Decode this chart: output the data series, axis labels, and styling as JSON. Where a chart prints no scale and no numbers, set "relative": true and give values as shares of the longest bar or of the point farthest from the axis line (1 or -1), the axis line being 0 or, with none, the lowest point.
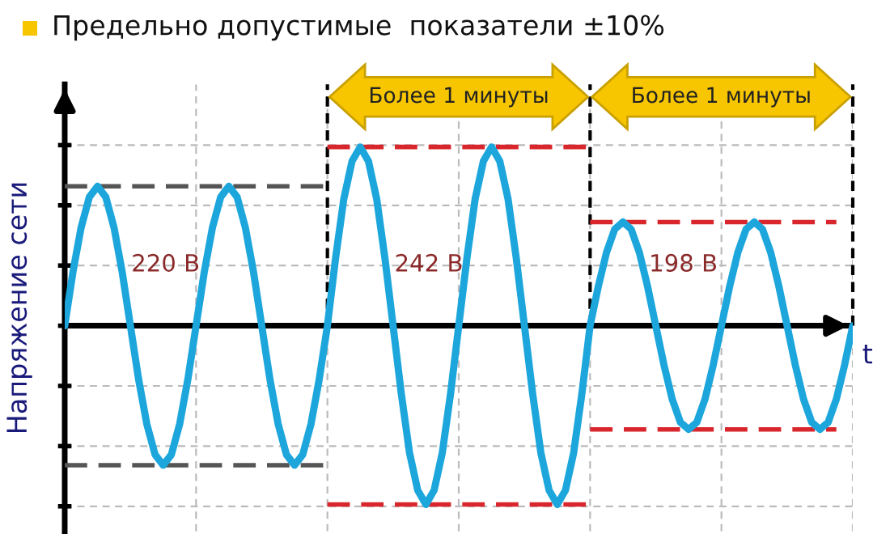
{
  "chart_data": {
    "type": "line",
    "title": "Предельно допустимые  показатели ±10%",
    "ylabel": "Напряжение сети",
    "xlabel": "t",
    "relative": true,
    "grid": true,
    "categories": [
      null,
      null,
      null,
      null,
      null,
      null,
      null,
      null,
      null,
      null,
      null,
      null,
      null,
      null,
      null,
      null,
      null,
      null,
      null,
      null,
      null,
      null,
      null,
      null,
      null,
      null,
      null,
      null,
      null,
      null,
      null,
      null,
      null,
      null,
      null,
      null,
      null,
      null,
      null,
      null,
      null,
      null,
      null,
      null,
      null,
      null,
      null,
      null,
      null,
      null,
      null,
      null,
      null,
      null,
      null,
      null,
      null,
      null,
      null,
      null,
      null,
      null,
      null,
      null,
      null,
      null,
      null,
      null,
      null,
      null,
      null,
      null,
      null,
      null,
      null,
      null,
      null,
      null,
      null,
      null,
      null,
      null,
      null,
      null,
      null,
      null,
      null,
      null,
      null,
      null,
      null,
      null,
      null,
      null,
      null,
      null,
      null
    ],
    "series": [
      {
        "color": "#1ca6dc",
        "line_style": "solid",
        "values": [
          0,
          0.3,
          0.55,
          0.72,
          0.78,
          0.72,
          0.55,
          0.3,
          0,
          -0.3,
          -0.55,
          -0.72,
          -0.78,
          -0.72,
          -0.55,
          -0.3,
          0,
          0.3,
          0.55,
          0.72,
          0.78,
          0.72,
          0.55,
          0.3,
          0,
          -0.3,
          -0.55,
          -0.72,
          -0.78,
          -0.72,
          -0.55,
          -0.3,
          0,
          0.38,
          0.71,
          0.92,
          1,
          0.92,
          0.71,
          0.38,
          0,
          -0.38,
          -0.71,
          -0.92,
          -1,
          -0.92,
          -0.71,
          -0.38,
          0,
          0.38,
          0.71,
          0.92,
          1,
          0.92,
          0.71,
          0.38,
          0,
          -0.38,
          -0.71,
          -0.92,
          -1,
          -0.92,
          -0.71,
          -0.38,
          0,
          0.22,
          0.41,
          0.54,
          0.58,
          0.54,
          0.41,
          0.22,
          0,
          -0.22,
          -0.41,
          -0.54,
          -0.58,
          -0.54,
          -0.41,
          -0.22,
          0,
          0.22,
          0.41,
          0.54,
          0.58,
          0.54,
          0.41,
          0.22,
          0,
          -0.22,
          -0.41,
          -0.54,
          -0.58,
          -0.54,
          -0.41,
          -0.22,
          0
        ]
      },
      {
        "color": "#555555",
        "line_style": "dashed",
        "values": [
          0.78,
          0.78,
          0.78,
          0.78,
          0.78,
          0.78,
          0.78,
          0.78,
          0.78,
          0.78,
          0.78,
          0.78,
          0.78,
          0.78,
          0.78,
          0.78,
          0.78,
          0.78,
          0.78,
          0.78,
          0.78,
          0.78,
          0.78,
          0.78,
          0.78,
          0.78,
          0.78,
          0.78,
          0.78,
          0.78,
          0.78,
          0.78,
          0.78,
          null,
          null,
          null,
          null,
          null,
          null,
          null,
          null,
          null,
          null,
          null,
          null,
          null,
          null,
          null,
          null,
          null,
          null,
          null,
          null,
          null,
          null,
          null,
          null,
          null,
          null,
          null,
          null,
          null,
          null,
          null,
          null,
          null,
          null,
          null,
          null,
          null,
          null,
          null,
          null,
          null,
          null,
          null,
          null,
          null,
          null,
          null,
          null,
          null,
          null,
          null,
          null,
          null,
          null,
          null,
          null,
          null,
          null,
          null,
          null,
          null,
          null,
          null,
          null
        ]
      },
      {
        "color": "#555555",
        "line_style": "dashed",
        "values": [
          -0.78,
          -0.78,
          -0.78,
          -0.78,
          -0.78,
          -0.78,
          -0.78,
          -0.78,
          -0.78,
          -0.78,
          -0.78,
          -0.78,
          -0.78,
          -0.78,
          -0.78,
          -0.78,
          -0.78,
          -0.78,
          -0.78,
          -0.78,
          -0.78,
          -0.78,
          -0.78,
          -0.78,
          -0.78,
          -0.78,
          -0.78,
          -0.78,
          -0.78,
          -0.78,
          -0.78,
          -0.78,
          -0.78,
          null,
          null,
          null,
          null,
          null,
          null,
          null,
          null,
          null,
          null,
          null,
          null,
          null,
          null,
          null,
          null,
          null,
          null,
          null,
          null,
          null,
          null,
          null,
          null,
          null,
          null,
          null,
          null,
          null,
          null,
          null,
          null,
          null,
          null,
          null,
          null,
          null,
          null,
          null,
          null,
          null,
          null,
          null,
          null,
          null,
          null,
          null,
          null,
          null,
          null,
          null,
          null,
          null,
          null,
          null,
          null,
          null,
          null,
          null,
          null,
          null,
          null,
          null,
          null
        ]
      },
      {
        "color": "#d9262c",
        "line_style": "dashed",
        "values": [
          null,
          null,
          null,
          null,
          null,
          null,
          null,
          null,
          null,
          null,
          null,
          null,
          null,
          null,
          null,
          null,
          null,
          null,
          null,
          null,
          null,
          null,
          null,
          null,
          null,
          null,
          null,
          null,
          null,
          null,
          null,
          null,
          1,
          1,
          1,
          1,
          1,
          1,
          1,
          1,
          1,
          1,
          1,
          1,
          1,
          1,
          1,
          1,
          1,
          1,
          1,
          1,
          1,
          1,
          1,
          1,
          1,
          1,
          1,
          1,
          1,
          1,
          1,
          1,
          1,
          null,
          null,
          null,
          null,
          null,
          null,
          null,
          null,
          null,
          null,
          null,
          null,
          null,
          null,
          null,
          null,
          null,
          null,
          null,
          null,
          null,
          null,
          null,
          null,
          null,
          null,
          null,
          null,
          null,
          null,
          null,
          null
        ]
      },
      {
        "color": "#d9262c",
        "line_style": "dashed",
        "values": [
          null,
          null,
          null,
          null,
          null,
          null,
          null,
          null,
          null,
          null,
          null,
          null,
          null,
          null,
          null,
          null,
          null,
          null,
          null,
          null,
          null,
          null,
          null,
          null,
          null,
          null,
          null,
          null,
          null,
          null,
          null,
          null,
          -1,
          -1,
          -1,
          -1,
          -1,
          -1,
          -1,
          -1,
          -1,
          -1,
          -1,
          -1,
          -1,
          -1,
          -1,
          -1,
          -1,
          -1,
          -1,
          -1,
          -1,
          -1,
          -1,
          -1,
          -1,
          -1,
          -1,
          -1,
          -1,
          -1,
          -1,
          -1,
          -1,
          null,
          null,
          null,
          null,
          null,
          null,
          null,
          null,
          null,
          null,
          null,
          null,
          null,
          null,
          null,
          null,
          null,
          null,
          null,
          null,
          null,
          null,
          null,
          null,
          null,
          null,
          null,
          null,
          null,
          null,
          null,
          null
        ]
      },
      {
        "color": "#d9262c",
        "line_style": "dashed",
        "values": [
          null,
          null,
          null,
          null,
          null,
          null,
          null,
          null,
          null,
          null,
          null,
          null,
          null,
          null,
          null,
          null,
          null,
          null,
          null,
          null,
          null,
          null,
          null,
          null,
          null,
          null,
          null,
          null,
          null,
          null,
          null,
          null,
          null,
          null,
          null,
          null,
          null,
          null,
          null,
          null,
          null,
          null,
          null,
          null,
          null,
          null,
          null,
          null,
          null,
          null,
          null,
          null,
          null,
          null,
          null,
          null,
          null,
          null,
          null,
          null,
          null,
          null,
          null,
          null,
          0.58,
          0.58,
          0.58,
          0.58,
          0.58,
          0.58,
          0.58,
          0.58,
          0.58,
          0.58,
          0.58,
          0.58,
          0.58,
          0.58,
          0.58,
          0.58,
          0.58,
          0.58,
          0.58,
          0.58,
          0.58,
          0.58,
          0.58,
          0.58,
          0.58,
          0.58,
          0.58,
          0.58,
          0.58,
          0.58,
          0.58,
          null,
          null
        ]
      },
      {
        "color": "#d9262c",
        "line_style": "dashed",
        "values": [
          null,
          null,
          null,
          null,
          null,
          null,
          null,
          null,
          null,
          null,
          null,
          null,
          null,
          null,
          null,
          null,
          null,
          null,
          null,
          null,
          null,
          null,
          null,
          null,
          null,
          null,
          null,
          null,
          null,
          null,
          null,
          null,
          null,
          null,
          null,
          null,
          null,
          null,
          null,
          null,
          null,
          null,
          null,
          null,
          null,
          null,
          null,
          null,
          null,
          null,
          null,
          null,
          null,
          null,
          null,
          null,
          null,
          null,
          null,
          null,
          null,
          null,
          null,
          null,
          -0.58,
          -0.58,
          -0.58,
          -0.58,
          -0.58,
          -0.58,
          -0.58,
          -0.58,
          -0.58,
          -0.58,
          -0.58,
          -0.58,
          -0.58,
          -0.58,
          -0.58,
          -0.58,
          -0.58,
          -0.58,
          -0.58,
          -0.58,
          -0.58,
          -0.58,
          -0.58,
          -0.58,
          -0.58,
          -0.58,
          -0.58,
          -0.58,
          -0.58,
          -0.58,
          -0.58,
          null,
          null
        ]
      }
    ],
    "ref_lines": [
      {
        "axis": "y",
        "value": 0,
        "color": "#000000",
        "line_style": "solid"
      }
    ],
    "annotations": [
      "220 В",
      "242 В",
      "198 В",
      "Более 1 минуты",
      "Более 1 минуты"
    ]
  }
}
